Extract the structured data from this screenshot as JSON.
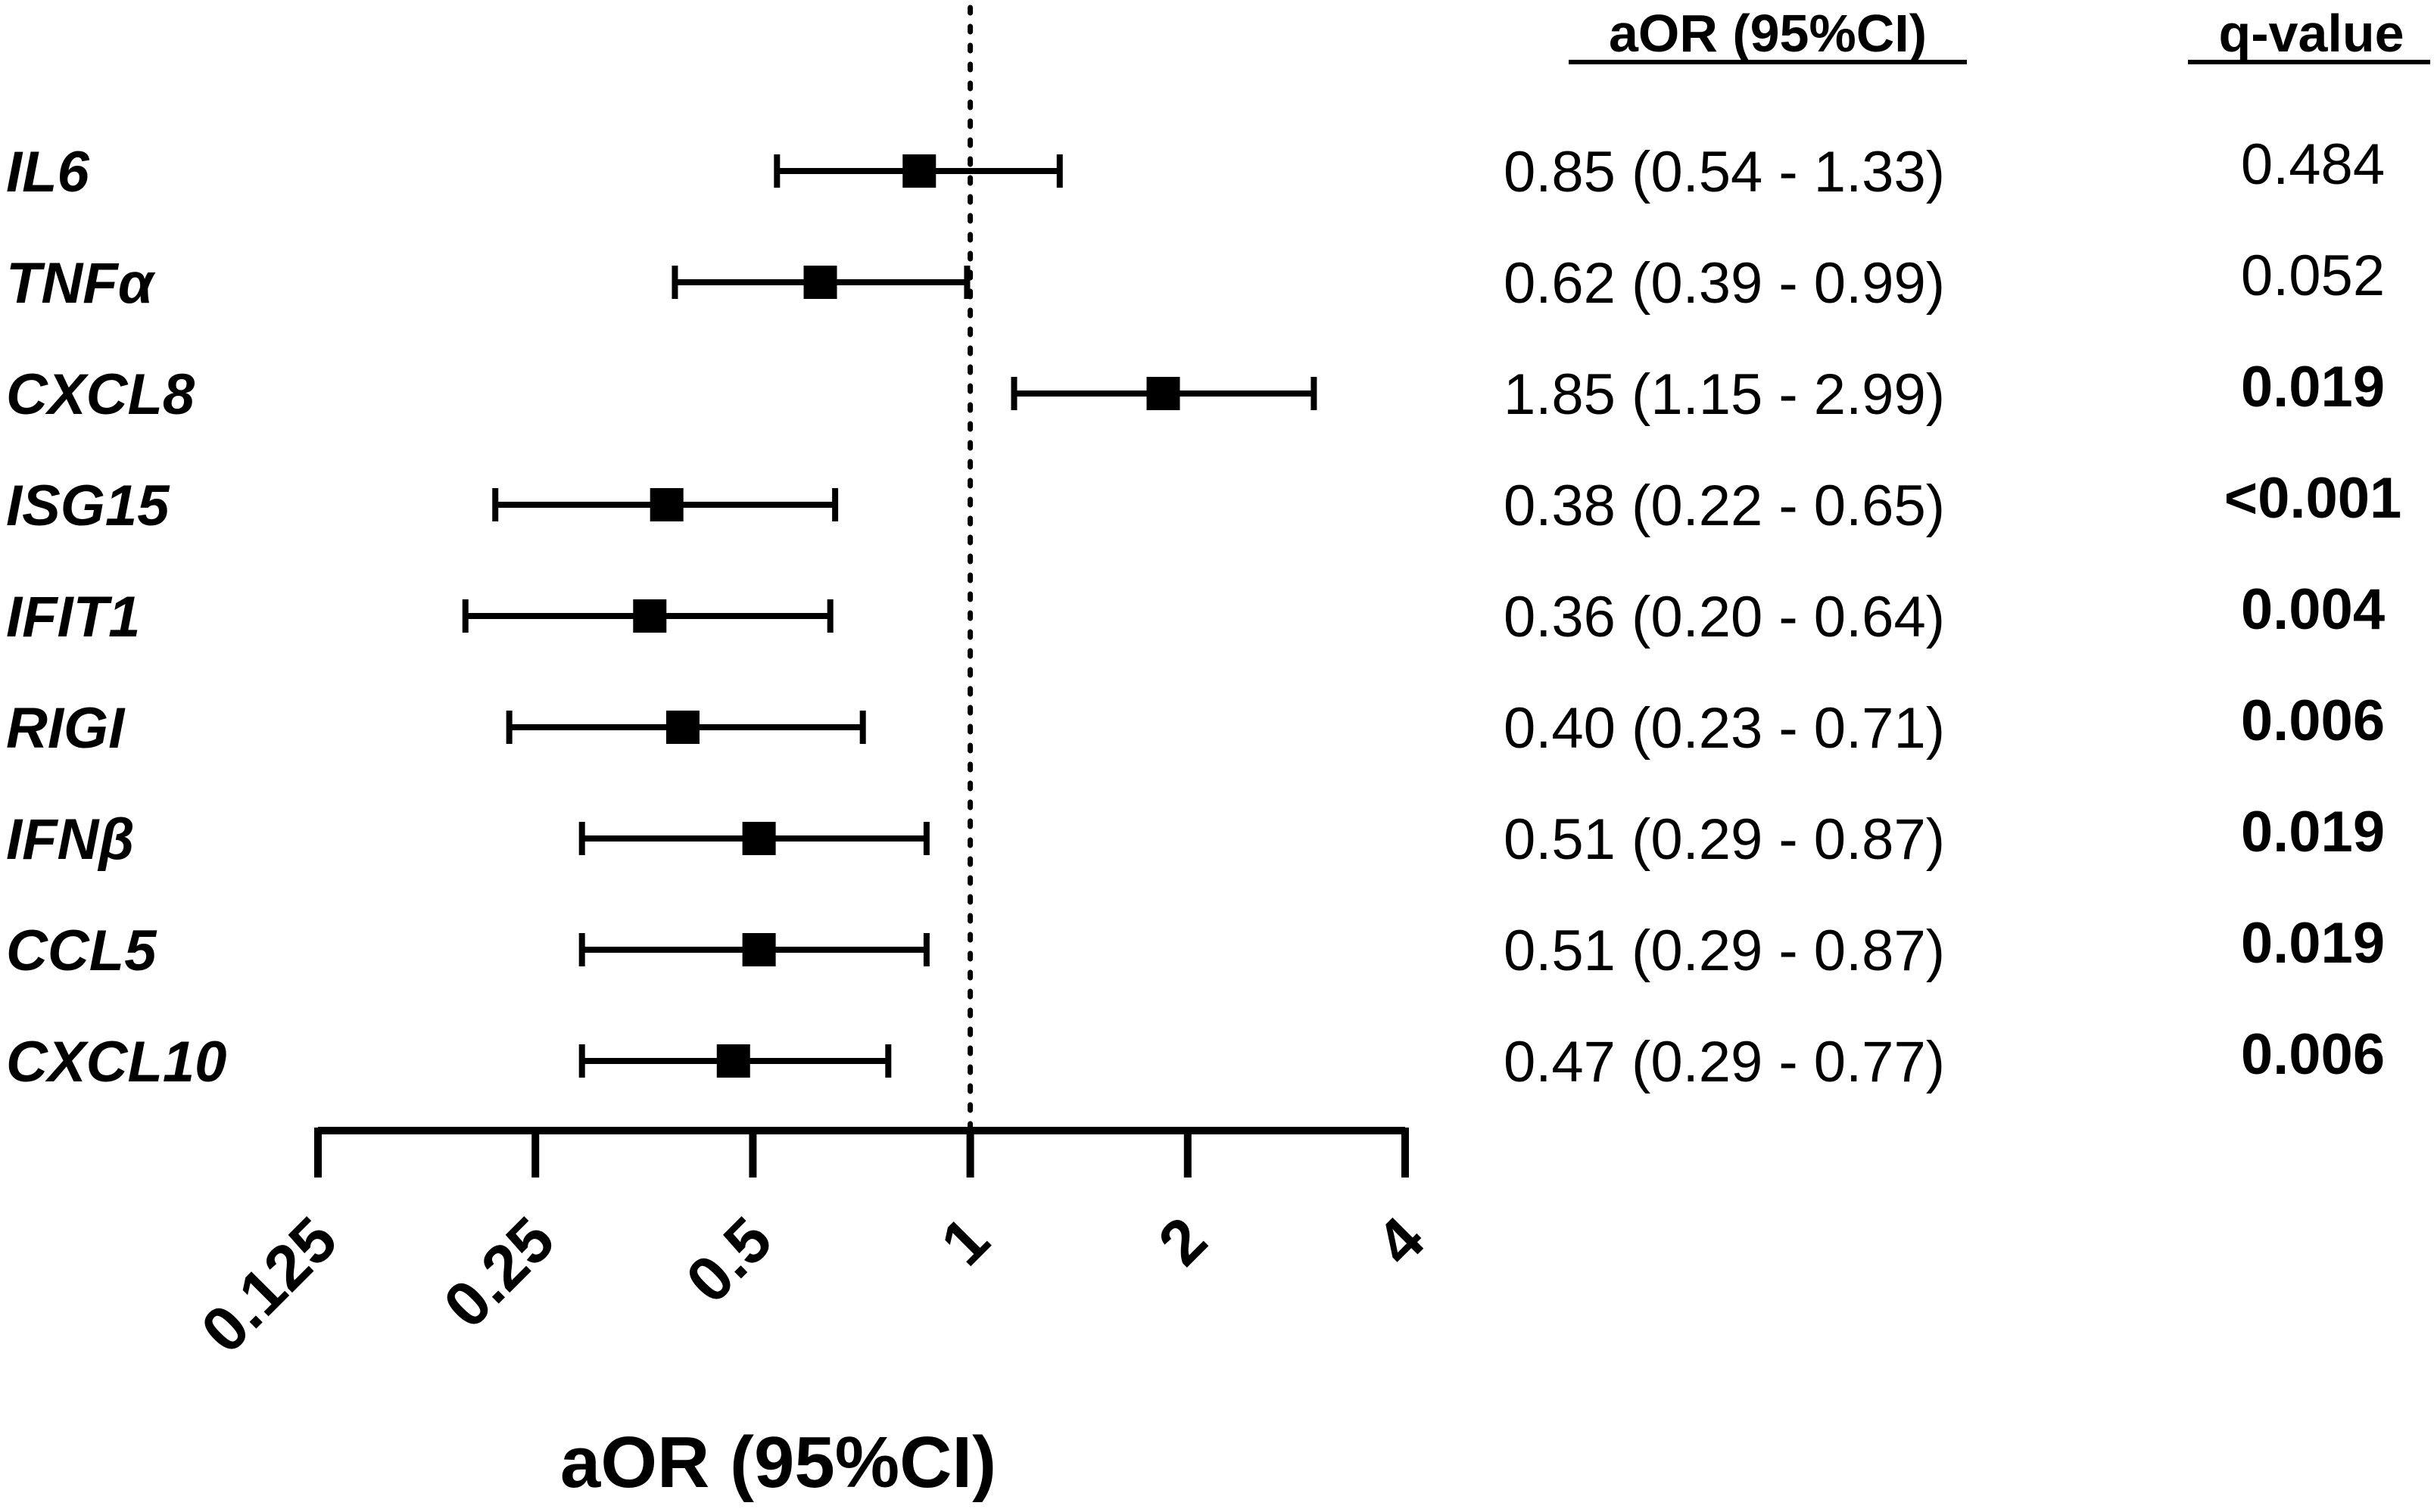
{
  "chart_data": {
    "type": "forest",
    "xlabel": "aOR (95%CI)",
    "x_scale": "log2",
    "xlim": [
      0.125,
      4
    ],
    "xticks": [
      "0.125",
      "0.25",
      "0.5",
      "1",
      "2",
      "4"
    ],
    "reference_line": 1,
    "column_headers": {
      "estimate": "aOR (95%CI)",
      "q": "q-value"
    },
    "rows": [
      {
        "label": "IL6",
        "or": 0.85,
        "lo": 0.54,
        "hi": 1.33,
        "text": "0.85 (0.54 - 1.33)",
        "q": "0.484",
        "sig": false
      },
      {
        "label": "TNFα",
        "or": 0.62,
        "lo": 0.39,
        "hi": 0.99,
        "text": "0.62 (0.39 - 0.99)",
        "q": "0.052",
        "sig": false
      },
      {
        "label": "CXCL8",
        "or": 1.85,
        "lo": 1.15,
        "hi": 2.99,
        "text": "1.85 (1.15 - 2.99)",
        "q": "0.019",
        "sig": true
      },
      {
        "label": "ISG15",
        "or": 0.38,
        "lo": 0.22,
        "hi": 0.65,
        "text": "0.38 (0.22 - 0.65)",
        "q": "<0.001",
        "sig": true
      },
      {
        "label": "IFIT1",
        "or": 0.36,
        "lo": 0.2,
        "hi": 0.64,
        "text": "0.36 (0.20 - 0.64)",
        "q": "0.004",
        "sig": true
      },
      {
        "label": "RIGI",
        "or": 0.4,
        "lo": 0.23,
        "hi": 0.71,
        "text": "0.40 (0.23 - 0.71)",
        "q": "0.006",
        "sig": true
      },
      {
        "label": "IFNβ",
        "or": 0.51,
        "lo": 0.29,
        "hi": 0.87,
        "text": "0.51 (0.29 - 0.87)",
        "q": "0.019",
        "sig": true
      },
      {
        "label": "CCL5",
        "or": 0.51,
        "lo": 0.29,
        "hi": 0.87,
        "text": "0.51 (0.29 - 0.87)",
        "q": "0.019",
        "sig": true
      },
      {
        "label": "CXCL10",
        "or": 0.47,
        "lo": 0.29,
        "hi": 0.77,
        "text": "0.47 (0.29 - 0.77)",
        "q": "0.006",
        "sig": true
      }
    ]
  }
}
